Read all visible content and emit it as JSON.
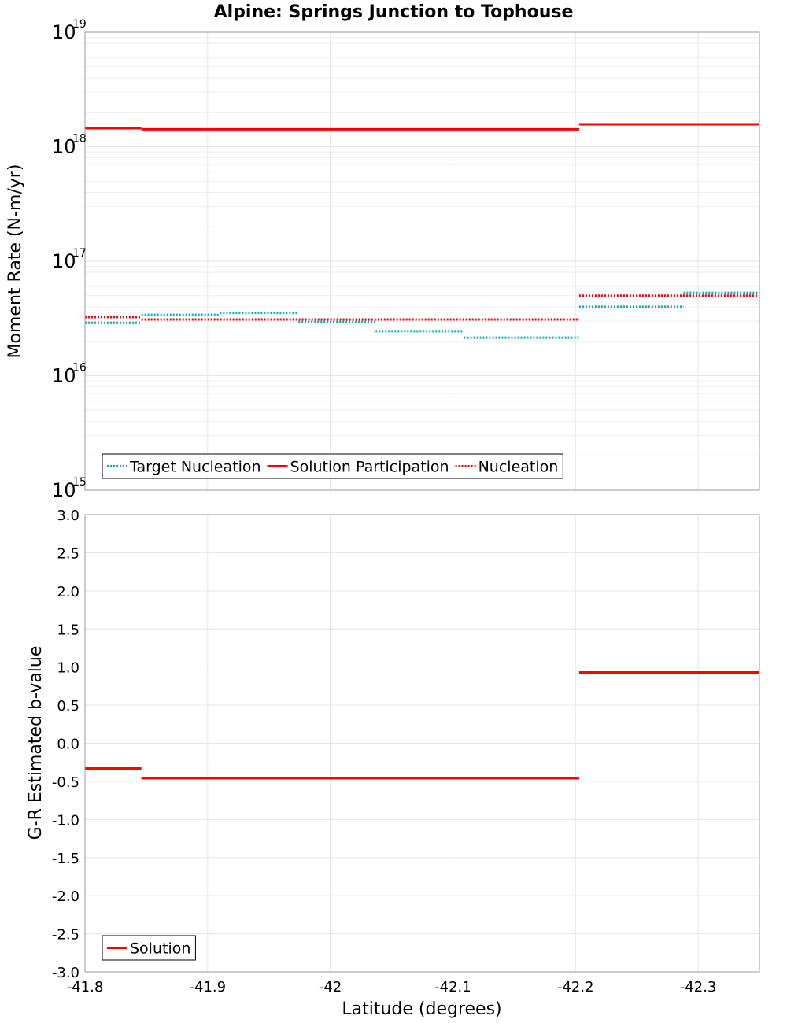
{
  "colors": {
    "solution": "#ff0000",
    "nucleation": "#ff0000",
    "target": "#00b4b4",
    "grid": "#e6e6e6",
    "frame": "#999999"
  },
  "chart_data": [
    {
      "type": "line",
      "scale": "log",
      "title": "Alpine: Springs Junction to Tophouse",
      "xlabel": "",
      "ylabel": "Moment Rate (N-m/yr)",
      "xlim": [
        -41.8,
        -42.35
      ],
      "ylim": [
        1000000000000000.0,
        1e+19
      ],
      "yticks": [
        {
          "value": 1000000000000000.0,
          "base": "10",
          "exp": "15"
        },
        {
          "value": 1e+16,
          "base": "10",
          "exp": "16"
        },
        {
          "value": 1e+17,
          "base": "10",
          "exp": "17"
        },
        {
          "value": 1e+18,
          "base": "10",
          "exp": "18"
        },
        {
          "value": 1e+19,
          "base": "10",
          "exp": "19"
        }
      ],
      "legend": {
        "position": "bottom-left",
        "entries": [
          {
            "label": "Target Nucleation",
            "series": "Target Nucleation"
          },
          {
            "label": "Solution Participation",
            "series": "Solution Participation"
          },
          {
            "label": "Nucleation",
            "series": "Nucleation"
          }
        ]
      },
      "series": [
        {
          "name": "Target Nucleation",
          "style": "dotted",
          "colorKey": "target",
          "segments": [
            {
              "x0": -41.8,
              "x1": -41.846,
              "y": 2.9e+16
            },
            {
              "x0": -41.846,
              "x1": -41.91,
              "y": 3.4e+16
            },
            {
              "x0": -41.91,
              "x1": -41.974,
              "y": 3.55e+16
            },
            {
              "x0": -41.974,
              "x1": -42.037,
              "y": 2.95e+16
            },
            {
              "x0": -42.037,
              "x1": -42.109,
              "y": 2.45e+16
            },
            {
              "x0": -42.109,
              "x1": -42.203,
              "y": 2.15e+16
            },
            {
              "x0": -42.203,
              "x1": -42.288,
              "y": 4e+16
            },
            {
              "x0": -42.288,
              "x1": -42.35,
              "y": 5.3e+16
            }
          ]
        },
        {
          "name": "Solution Participation",
          "style": "solid",
          "colorKey": "solution",
          "segments": [
            {
              "x0": -41.8,
              "x1": -41.846,
              "y": 1.45e+18
            },
            {
              "x0": -41.846,
              "x1": -42.203,
              "y": 1.42e+18
            },
            {
              "x0": -42.203,
              "x1": -42.35,
              "y": 1.57e+18
            }
          ]
        },
        {
          "name": "Nucleation",
          "style": "dotted",
          "colorKey": "nucleation",
          "segments": [
            {
              "x0": -41.8,
              "x1": -41.846,
              "y": 3.25e+16
            },
            {
              "x0": -41.846,
              "x1": -42.203,
              "y": 3.1e+16
            },
            {
              "x0": -42.203,
              "x1": -42.35,
              "y": 5e+16
            }
          ]
        }
      ]
    },
    {
      "type": "line",
      "scale": "linear",
      "title": "",
      "xlabel": "Latitude (degrees)",
      "ylabel": "G-R Estimated b-value",
      "xlim": [
        -41.8,
        -42.35
      ],
      "ylim": [
        -3.0,
        3.0
      ],
      "xticks": [
        {
          "value": -41.8,
          "label": "-41.8"
        },
        {
          "value": -41.9,
          "label": "-41.9"
        },
        {
          "value": -42.0,
          "label": "-42"
        },
        {
          "value": -42.1,
          "label": "-42.1"
        },
        {
          "value": -42.2,
          "label": "-42.2"
        },
        {
          "value": -42.3,
          "label": "-42.3"
        }
      ],
      "yticks": [
        {
          "value": 3.0,
          "label": "3.0"
        },
        {
          "value": 2.5,
          "label": "2.5"
        },
        {
          "value": 2.0,
          "label": "2.0"
        },
        {
          "value": 1.5,
          "label": "1.5"
        },
        {
          "value": 1.0,
          "label": "1.0"
        },
        {
          "value": 0.5,
          "label": "0.5"
        },
        {
          "value": 0.0,
          "label": "0.0"
        },
        {
          "value": -0.5,
          "label": "-0.5"
        },
        {
          "value": -1.0,
          "label": "-1.0"
        },
        {
          "value": -1.5,
          "label": "-1.5"
        },
        {
          "value": -2.0,
          "label": "-2.0"
        },
        {
          "value": -2.5,
          "label": "-2.5"
        },
        {
          "value": -3.0,
          "label": "-3.0"
        }
      ],
      "legend": {
        "position": "bottom-left",
        "entries": [
          {
            "label": "Solution",
            "series": "Solution"
          }
        ]
      },
      "series": [
        {
          "name": "Solution",
          "style": "solid",
          "colorKey": "solution",
          "segments": [
            {
              "x0": -41.8,
              "x1": -41.846,
              "y": -0.33
            },
            {
              "x0": -41.846,
              "x1": -42.203,
              "y": -0.46
            },
            {
              "x0": -42.203,
              "x1": -42.35,
              "y": 0.93
            }
          ]
        }
      ]
    }
  ]
}
